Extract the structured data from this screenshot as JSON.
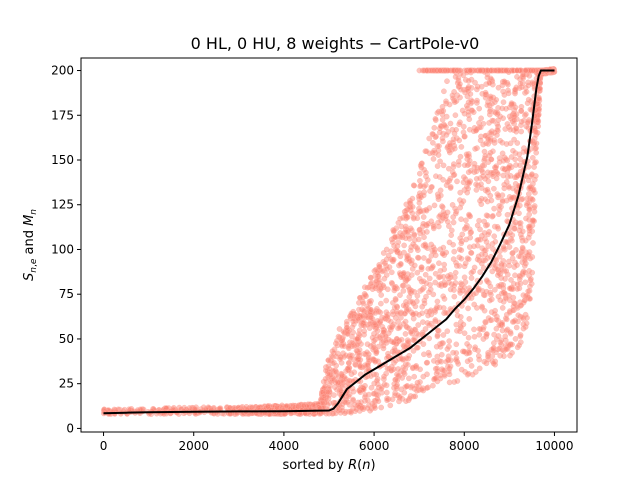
{
  "chart_data": {
    "type": "scatter",
    "title": "0 HL, 0 HU, 8 weights − CartPole-v0",
    "xlabel": "sorted by R(n)",
    "ylabel": "S_{n,e} and M_n",
    "xlim": [
      -500,
      10500
    ],
    "ylim": [
      -2,
      207
    ],
    "xticks": [
      0,
      2000,
      4000,
      6000,
      8000,
      10000
    ],
    "yticks": [
      0,
      25,
      50,
      75,
      100,
      125,
      150,
      175,
      200
    ],
    "grid": false,
    "colors": {
      "scatter": "#fa8072",
      "mean_line": "#000000"
    },
    "mean_line": {
      "x": [
        0,
        500,
        1000,
        2000,
        3000,
        4000,
        4500,
        5000,
        5100,
        5200,
        5300,
        5400,
        5600,
        5800,
        6000,
        6200,
        6400,
        6600,
        6800,
        7000,
        7200,
        7400,
        7600,
        7800,
        8000,
        8200,
        8400,
        8600,
        8800,
        9000,
        9200,
        9400,
        9500,
        9600,
        9650,
        9700,
        10000
      ],
      "y": [
        8.5,
        8.8,
        9.0,
        9.3,
        9.5,
        9.6,
        9.8,
        10.0,
        11.0,
        14.0,
        18.0,
        22.0,
        26.0,
        30.0,
        33.0,
        36.0,
        39.0,
        42.0,
        45.0,
        49.0,
        53.0,
        57.0,
        61.0,
        67.0,
        72.0,
        78.0,
        85.0,
        93.0,
        103.0,
        114.0,
        130.0,
        152.0,
        170.0,
        190.0,
        197.0,
        200.0,
        200.0
      ]
    },
    "scatter_envelope": {
      "x": [
        0,
        1000,
        2000,
        3000,
        4000,
        4800,
        5000,
        5200,
        5400,
        5600,
        5800,
        6000,
        6200,
        6400,
        6600,
        6800,
        7000,
        7200,
        7400,
        7600,
        7800,
        8000,
        8200,
        8400,
        8600,
        8800,
        9000,
        9200,
        9300,
        9400,
        9500,
        9600,
        9700,
        10000
      ],
      "low": [
        8,
        8,
        8,
        8,
        8,
        8,
        8,
        8,
        8,
        9,
        9,
        10,
        11,
        12,
        14,
        16,
        18,
        20,
        22,
        24,
        26,
        28,
        30,
        32,
        34,
        37,
        40,
        45,
        50,
        60,
        80,
        150,
        198,
        199
      ],
      "high": [
        11,
        11,
        12,
        12,
        13,
        14,
        45,
        55,
        60,
        70,
        80,
        90,
        100,
        110,
        120,
        130,
        145,
        160,
        180,
        195,
        200,
        200,
        200,
        200,
        200,
        200,
        200,
        200,
        200,
        200,
        200,
        200,
        200,
        201
      ],
      "count": 3200
    }
  }
}
